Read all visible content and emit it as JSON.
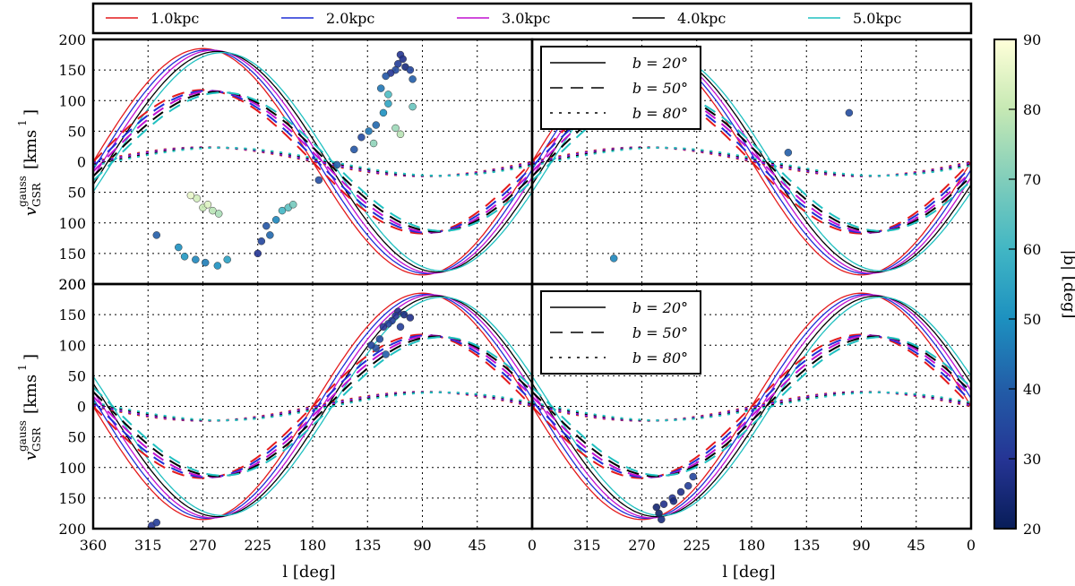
{
  "chart_data": {
    "type": "line",
    "layout": "2x2 panel grid with shared axes and a colorbar",
    "series_legend": [
      {
        "name": "1.0kpc",
        "color": "#e41a1c"
      },
      {
        "name": "2.0kpc",
        "color": "#1f2fd6"
      },
      {
        "name": "3.0kpc",
        "color": "#c010d0"
      },
      {
        "name": "4.0kpc",
        "color": "#000000"
      },
      {
        "name": "5.0kpc",
        "color": "#20c0c0"
      }
    ],
    "latitude_legend": {
      "top": [
        {
          "label": "b = 20°",
          "style": "solid"
        },
        {
          "label": "b = 50°",
          "style": "dashed"
        },
        {
          "label": "b = 80°",
          "style": "dotted"
        }
      ],
      "bottom": [
        {
          "label": "b =   20°",
          "style": "solid"
        },
        {
          "label": "b =   50°",
          "style": "dashed"
        },
        {
          "label": "b =   80°",
          "style": "dotted"
        }
      ]
    },
    "xlabel": "l [deg]",
    "ylabel_main": "v",
    "ylabel_sub": "GSR",
    "ylabel_sup": "gauss",
    "ylabel_units": "[kms",
    "ylabel_units_sup": "1",
    "ylabel_close": "]",
    "x_ticks": [
      "360",
      "315",
      "270",
      "225",
      "180",
      "135",
      "90",
      "45",
      "0"
    ],
    "x_ticks_right": [
      "315",
      "270",
      "225",
      "180",
      "135",
      "90",
      "45",
      "0"
    ],
    "y_ticks": [
      "200",
      "150",
      "100",
      "50",
      "0",
      "50",
      "100",
      "150",
      "200"
    ],
    "xlim": [
      360,
      0
    ],
    "ylim": [
      -200,
      200
    ],
    "model": {
      "solar_speed": 185,
      "height_factors": [
        1.0,
        0.634,
        0.128
      ]
    },
    "panels": [
      {
        "id": "top-left",
        "signs": [
          1,
          1,
          1
        ],
        "scatter": [
          {
            "l": 108,
            "v": 175,
            "b": 30
          },
          {
            "l": 106,
            "v": 168,
            "b": 28
          },
          {
            "l": 110,
            "v": 160,
            "b": 32
          },
          {
            "l": 112,
            "v": 150,
            "b": 35
          },
          {
            "l": 116,
            "v": 145,
            "b": 30
          },
          {
            "l": 120,
            "v": 140,
            "b": 38
          },
          {
            "l": 104,
            "v": 155,
            "b": 26
          },
          {
            "l": 100,
            "v": 150,
            "b": 34
          },
          {
            "l": 98,
            "v": 135,
            "b": 40
          },
          {
            "l": 124,
            "v": 120,
            "b": 45
          },
          {
            "l": 118,
            "v": 95,
            "b": 55
          },
          {
            "l": 122,
            "v": 80,
            "b": 50
          },
          {
            "l": 128,
            "v": 60,
            "b": 42
          },
          {
            "l": 134,
            "v": 50,
            "b": 45
          },
          {
            "l": 140,
            "v": 40,
            "b": 35
          },
          {
            "l": 146,
            "v": 20,
            "b": 38
          },
          {
            "l": 160,
            "v": -5,
            "b": 40
          },
          {
            "l": 175,
            "v": -30,
            "b": 36
          },
          {
            "l": 108,
            "v": 45,
            "b": 78
          },
          {
            "l": 112,
            "v": 55,
            "b": 74
          },
          {
            "l": 130,
            "v": 30,
            "b": 72
          },
          {
            "l": 98,
            "v": 90,
            "b": 66
          },
          {
            "l": 118,
            "v": 110,
            "b": 62
          },
          {
            "l": 275,
            "v": -60,
            "b": 82
          },
          {
            "l": 270,
            "v": -75,
            "b": 80
          },
          {
            "l": 262,
            "v": -80,
            "b": 78
          },
          {
            "l": 257,
            "v": -85,
            "b": 76
          },
          {
            "l": 266,
            "v": -70,
            "b": 84
          },
          {
            "l": 280,
            "v": -55,
            "b": 86
          },
          {
            "l": 290,
            "v": -140,
            "b": 50
          },
          {
            "l": 285,
            "v": -155,
            "b": 52
          },
          {
            "l": 276,
            "v": -160,
            "b": 48
          },
          {
            "l": 268,
            "v": -165,
            "b": 46
          },
          {
            "l": 258,
            "v": -170,
            "b": 50
          },
          {
            "l": 250,
            "v": -160,
            "b": 54
          },
          {
            "l": 308,
            "v": -120,
            "b": 40
          },
          {
            "l": 225,
            "v": -150,
            "b": 30
          },
          {
            "l": 222,
            "v": -130,
            "b": 34
          },
          {
            "l": 218,
            "v": -105,
            "b": 38
          },
          {
            "l": 215,
            "v": -120,
            "b": 42
          },
          {
            "l": 210,
            "v": -95,
            "b": 48
          },
          {
            "l": 205,
            "v": -80,
            "b": 60
          },
          {
            "l": 200,
            "v": -75,
            "b": 64
          },
          {
            "l": 196,
            "v": -70,
            "b": 68
          }
        ]
      },
      {
        "id": "top-right",
        "signs": [
          1,
          1,
          1
        ],
        "scatter": [
          {
            "l": 293,
            "v": -158,
            "b": 48
          },
          {
            "l": 150,
            "v": 15,
            "b": 40
          },
          {
            "l": 100,
            "v": 80,
            "b": 36
          }
        ]
      },
      {
        "id": "bottom-left",
        "signs": [
          -1,
          -1,
          -1
        ],
        "scatter": [
          {
            "l": 110,
            "v": 155,
            "b": 28
          },
          {
            "l": 112,
            "v": 148,
            "b": 30
          },
          {
            "l": 115,
            "v": 140,
            "b": 32
          },
          {
            "l": 118,
            "v": 135,
            "b": 34
          },
          {
            "l": 122,
            "v": 130,
            "b": 30
          },
          {
            "l": 105,
            "v": 150,
            "b": 26
          },
          {
            "l": 100,
            "v": 145,
            "b": 28
          },
          {
            "l": 125,
            "v": 110,
            "b": 36
          },
          {
            "l": 128,
            "v": 95,
            "b": 38
          },
          {
            "l": 120,
            "v": 85,
            "b": 40
          },
          {
            "l": 132,
            "v": 100,
            "b": 34
          },
          {
            "l": 108,
            "v": 130,
            "b": 32
          },
          {
            "l": 312,
            "v": -195,
            "b": 30
          },
          {
            "l": 308,
            "v": -190,
            "b": 32
          }
        ]
      },
      {
        "id": "bottom-right",
        "signs": [
          -1,
          -1,
          -1
        ],
        "scatter": [
          {
            "l": 258,
            "v": -165,
            "b": 24
          },
          {
            "l": 256,
            "v": -175,
            "b": 22
          },
          {
            "l": 254,
            "v": -185,
            "b": 26
          },
          {
            "l": 252,
            "v": -160,
            "b": 28
          },
          {
            "l": 245,
            "v": -150,
            "b": 30
          },
          {
            "l": 238,
            "v": -140,
            "b": 28
          },
          {
            "l": 232,
            "v": -130,
            "b": 32
          },
          {
            "l": 228,
            "v": -115,
            "b": 34
          },
          {
            "l": 244,
            "v": -155,
            "b": 26
          }
        ]
      }
    ],
    "colorbar": {
      "label": "|b| [deg]",
      "range": [
        20,
        90
      ],
      "ticks": [
        "90",
        "80",
        "70",
        "60",
        "50",
        "40",
        "30",
        "20"
      ],
      "colormap": "YlGnBu"
    }
  }
}
